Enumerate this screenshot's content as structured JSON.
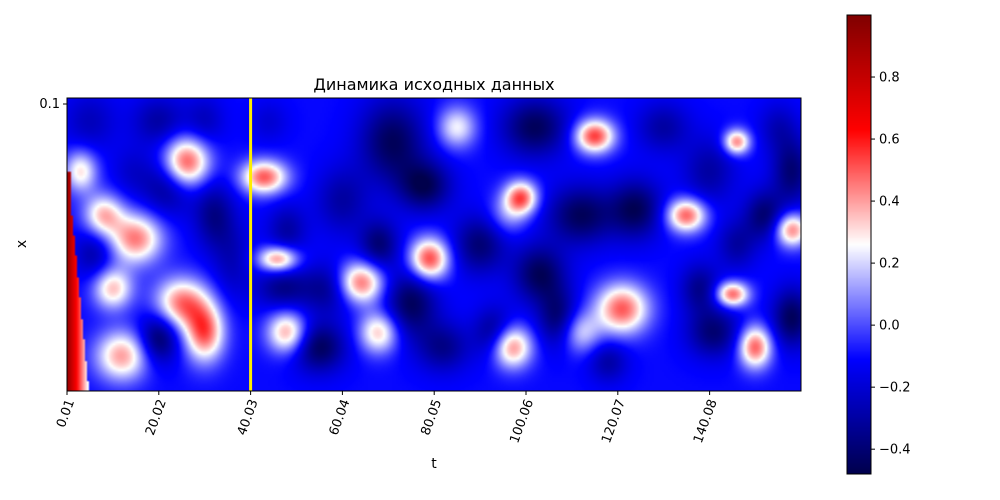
{
  "chart_data": {
    "type": "heatmap",
    "title": "Динамика исходных данных",
    "xlabel": "t",
    "ylabel": "x",
    "x_range": [
      0.01,
      160.0
    ],
    "y_range": [
      0.0,
      0.1
    ],
    "x_ticks": [
      0.01,
      20.02,
      40.03,
      60.04,
      80.05,
      100.06,
      120.07,
      140.08
    ],
    "x_tick_labels": [
      "0.01",
      "20.02",
      "40.03",
      "60.04",
      "80.05",
      "100.06",
      "120.07",
      "140.08"
    ],
    "y_ticks": [
      0.1
    ],
    "y_tick_labels": [
      "0.1"
    ],
    "colormap": "seismic",
    "color_range": [
      -0.48,
      1.0
    ],
    "colorbar_ticks": [
      0.8,
      0.6,
      0.4,
      0.2,
      0.0,
      -0.2,
      -0.4
    ],
    "colorbar_tick_labels": [
      "0.8",
      "0.6",
      "0.4",
      "0.2",
      "0.0",
      "−0.2",
      "−0.4"
    ],
    "marker_line": {
      "t": 40.03,
      "color": "#ffee00"
    },
    "background_level": -0.1,
    "features": [
      {
        "t": 5,
        "x": 0.092,
        "level": -0.25,
        "st": 4,
        "sx": 0.007
      },
      {
        "t": 3,
        "x": 0.075,
        "level": 0.3,
        "st": 2.5,
        "sx": 0.005
      },
      {
        "t": 8,
        "x": 0.06,
        "level": 0.35,
        "st": 3,
        "sx": 0.005
      },
      {
        "t": 15,
        "x": 0.052,
        "level": 0.45,
        "st": 4,
        "sx": 0.006
      },
      {
        "t": 6,
        "x": 0.047,
        "level": -0.3,
        "st": 3,
        "sx": 0.006
      },
      {
        "t": 10,
        "x": 0.035,
        "level": 0.35,
        "st": 3,
        "sx": 0.005
      },
      {
        "t": 12,
        "x": 0.012,
        "level": 0.4,
        "st": 4,
        "sx": 0.006
      },
      {
        "t": 14,
        "x": 0.075,
        "level": -0.2,
        "st": 3,
        "sx": 0.006
      },
      {
        "t": 20,
        "x": 0.092,
        "level": -0.3,
        "st": 4,
        "sx": 0.006
      },
      {
        "t": 22,
        "x": 0.07,
        "level": -0.35,
        "st": 4,
        "sx": 0.007
      },
      {
        "t": 26,
        "x": 0.078,
        "level": 0.55,
        "st": 3.5,
        "sx": 0.006
      },
      {
        "t": 30,
        "x": 0.092,
        "level": -0.25,
        "st": 3,
        "sx": 0.006
      },
      {
        "t": 32,
        "x": 0.06,
        "level": -0.35,
        "st": 3,
        "sx": 0.008
      },
      {
        "t": 22,
        "x": 0.045,
        "level": -0.1,
        "st": 3,
        "sx": 0.006
      },
      {
        "t": 25,
        "x": 0.03,
        "level": 0.45,
        "st": 4,
        "sx": 0.006
      },
      {
        "t": 30,
        "x": 0.02,
        "level": 0.5,
        "st": 3,
        "sx": 0.007
      },
      {
        "t": 20,
        "x": 0.018,
        "level": -0.45,
        "st": 3,
        "sx": 0.006
      },
      {
        "t": 36,
        "x": 0.045,
        "level": -0.25,
        "st": 3,
        "sx": 0.01
      },
      {
        "t": 43,
        "x": 0.073,
        "level": 0.5,
        "st": 3.5,
        "sx": 0.004
      },
      {
        "t": 44,
        "x": 0.092,
        "level": -0.2,
        "st": 3,
        "sx": 0.005
      },
      {
        "t": 48,
        "x": 0.055,
        "level": -0.3,
        "st": 3,
        "sx": 0.006
      },
      {
        "t": 46,
        "x": 0.045,
        "level": 0.45,
        "st": 3,
        "sx": 0.003
      },
      {
        "t": 47,
        "x": 0.035,
        "level": -0.35,
        "st": 4,
        "sx": 0.005
      },
      {
        "t": 48,
        "x": 0.02,
        "level": 0.4,
        "st": 3,
        "sx": 0.005
      },
      {
        "t": 55,
        "x": 0.015,
        "level": -0.45,
        "st": 4,
        "sx": 0.006
      },
      {
        "t": 57,
        "x": 0.035,
        "level": -0.35,
        "st": 4,
        "sx": 0.006
      },
      {
        "t": 60,
        "x": 0.065,
        "level": -0.3,
        "st": 4,
        "sx": 0.008
      },
      {
        "t": 60,
        "x": 0.095,
        "level": -0.1,
        "st": 3,
        "sx": 0.005
      },
      {
        "t": 64,
        "x": 0.037,
        "level": 0.5,
        "st": 3.5,
        "sx": 0.005
      },
      {
        "t": 68,
        "x": 0.02,
        "level": 0.35,
        "st": 3,
        "sx": 0.005
      },
      {
        "t": 68,
        "x": 0.05,
        "level": -0.4,
        "st": 3,
        "sx": 0.006
      },
      {
        "t": 71,
        "x": 0.085,
        "level": -0.45,
        "st": 5,
        "sx": 0.01
      },
      {
        "t": 78,
        "x": 0.07,
        "level": -0.45,
        "st": 4,
        "sx": 0.006
      },
      {
        "t": 79,
        "x": 0.045,
        "level": 0.55,
        "st": 3,
        "sx": 0.005
      },
      {
        "t": 75,
        "x": 0.03,
        "level": -0.45,
        "st": 4,
        "sx": 0.008
      },
      {
        "t": 82,
        "x": 0.015,
        "level": -0.35,
        "st": 4,
        "sx": 0.006
      },
      {
        "t": 85,
        "x": 0.09,
        "level": 0.25,
        "st": 3,
        "sx": 0.005
      },
      {
        "t": 90,
        "x": 0.05,
        "level": -0.4,
        "st": 4,
        "sx": 0.007
      },
      {
        "t": 93,
        "x": 0.02,
        "level": -0.35,
        "st": 3,
        "sx": 0.006
      },
      {
        "t": 96,
        "x": 0.06,
        "level": 0.1,
        "st": 3,
        "sx": 0.005
      },
      {
        "t": 97,
        "x": 0.015,
        "level": 0.45,
        "st": 3,
        "sx": 0.005
      },
      {
        "t": 102,
        "x": 0.09,
        "level": -0.45,
        "st": 5,
        "sx": 0.007
      },
      {
        "t": 99,
        "x": 0.066,
        "level": 0.5,
        "st": 2.5,
        "sx": 0.004
      },
      {
        "t": 103,
        "x": 0.04,
        "level": -0.45,
        "st": 4,
        "sx": 0.007
      },
      {
        "t": 107,
        "x": 0.025,
        "level": -0.4,
        "st": 3,
        "sx": 0.007
      },
      {
        "t": 112,
        "x": 0.02,
        "level": 0.2,
        "st": 3,
        "sx": 0.005
      },
      {
        "t": 112,
        "x": 0.06,
        "level": -0.45,
        "st": 5,
        "sx": 0.007
      },
      {
        "t": 115,
        "x": 0.087,
        "level": 0.55,
        "st": 3,
        "sx": 0.004
      },
      {
        "t": 121,
        "x": 0.028,
        "level": 0.5,
        "st": 4,
        "sx": 0.006
      },
      {
        "t": 118,
        "x": 0.01,
        "level": -0.3,
        "st": 3,
        "sx": 0.005
      },
      {
        "t": 124,
        "x": 0.062,
        "level": -0.45,
        "st": 4,
        "sx": 0.007
      },
      {
        "t": 130,
        "x": 0.09,
        "level": -0.3,
        "st": 4,
        "sx": 0.006
      },
      {
        "t": 135,
        "x": 0.06,
        "level": 0.5,
        "st": 3,
        "sx": 0.004
      },
      {
        "t": 138,
        "x": 0.035,
        "level": -0.35,
        "st": 3,
        "sx": 0.006
      },
      {
        "t": 141,
        "x": 0.02,
        "level": -0.4,
        "st": 4,
        "sx": 0.006
      },
      {
        "t": 140,
        "x": 0.075,
        "level": -0.3,
        "st": 4,
        "sx": 0.008
      },
      {
        "t": 145,
        "x": 0.033,
        "level": 0.5,
        "st": 2.5,
        "sx": 0.003
      },
      {
        "t": 146,
        "x": 0.05,
        "level": -0.3,
        "st": 3,
        "sx": 0.006
      },
      {
        "t": 146,
        "x": 0.085,
        "level": 0.45,
        "st": 2,
        "sx": 0.003
      },
      {
        "t": 150,
        "x": 0.015,
        "level": 0.5,
        "st": 2.5,
        "sx": 0.005
      },
      {
        "t": 152,
        "x": 0.06,
        "level": -0.4,
        "st": 3,
        "sx": 0.006
      },
      {
        "t": 155,
        "x": 0.09,
        "level": -0.25,
        "st": 3,
        "sx": 0.006
      },
      {
        "t": 158,
        "x": 0.075,
        "level": -0.4,
        "st": 3,
        "sx": 0.008
      },
      {
        "t": 158,
        "x": 0.055,
        "level": 0.45,
        "st": 2.5,
        "sx": 0.004
      },
      {
        "t": 158,
        "x": 0.025,
        "level": -0.45,
        "st": 3,
        "sx": 0.007
      }
    ]
  }
}
